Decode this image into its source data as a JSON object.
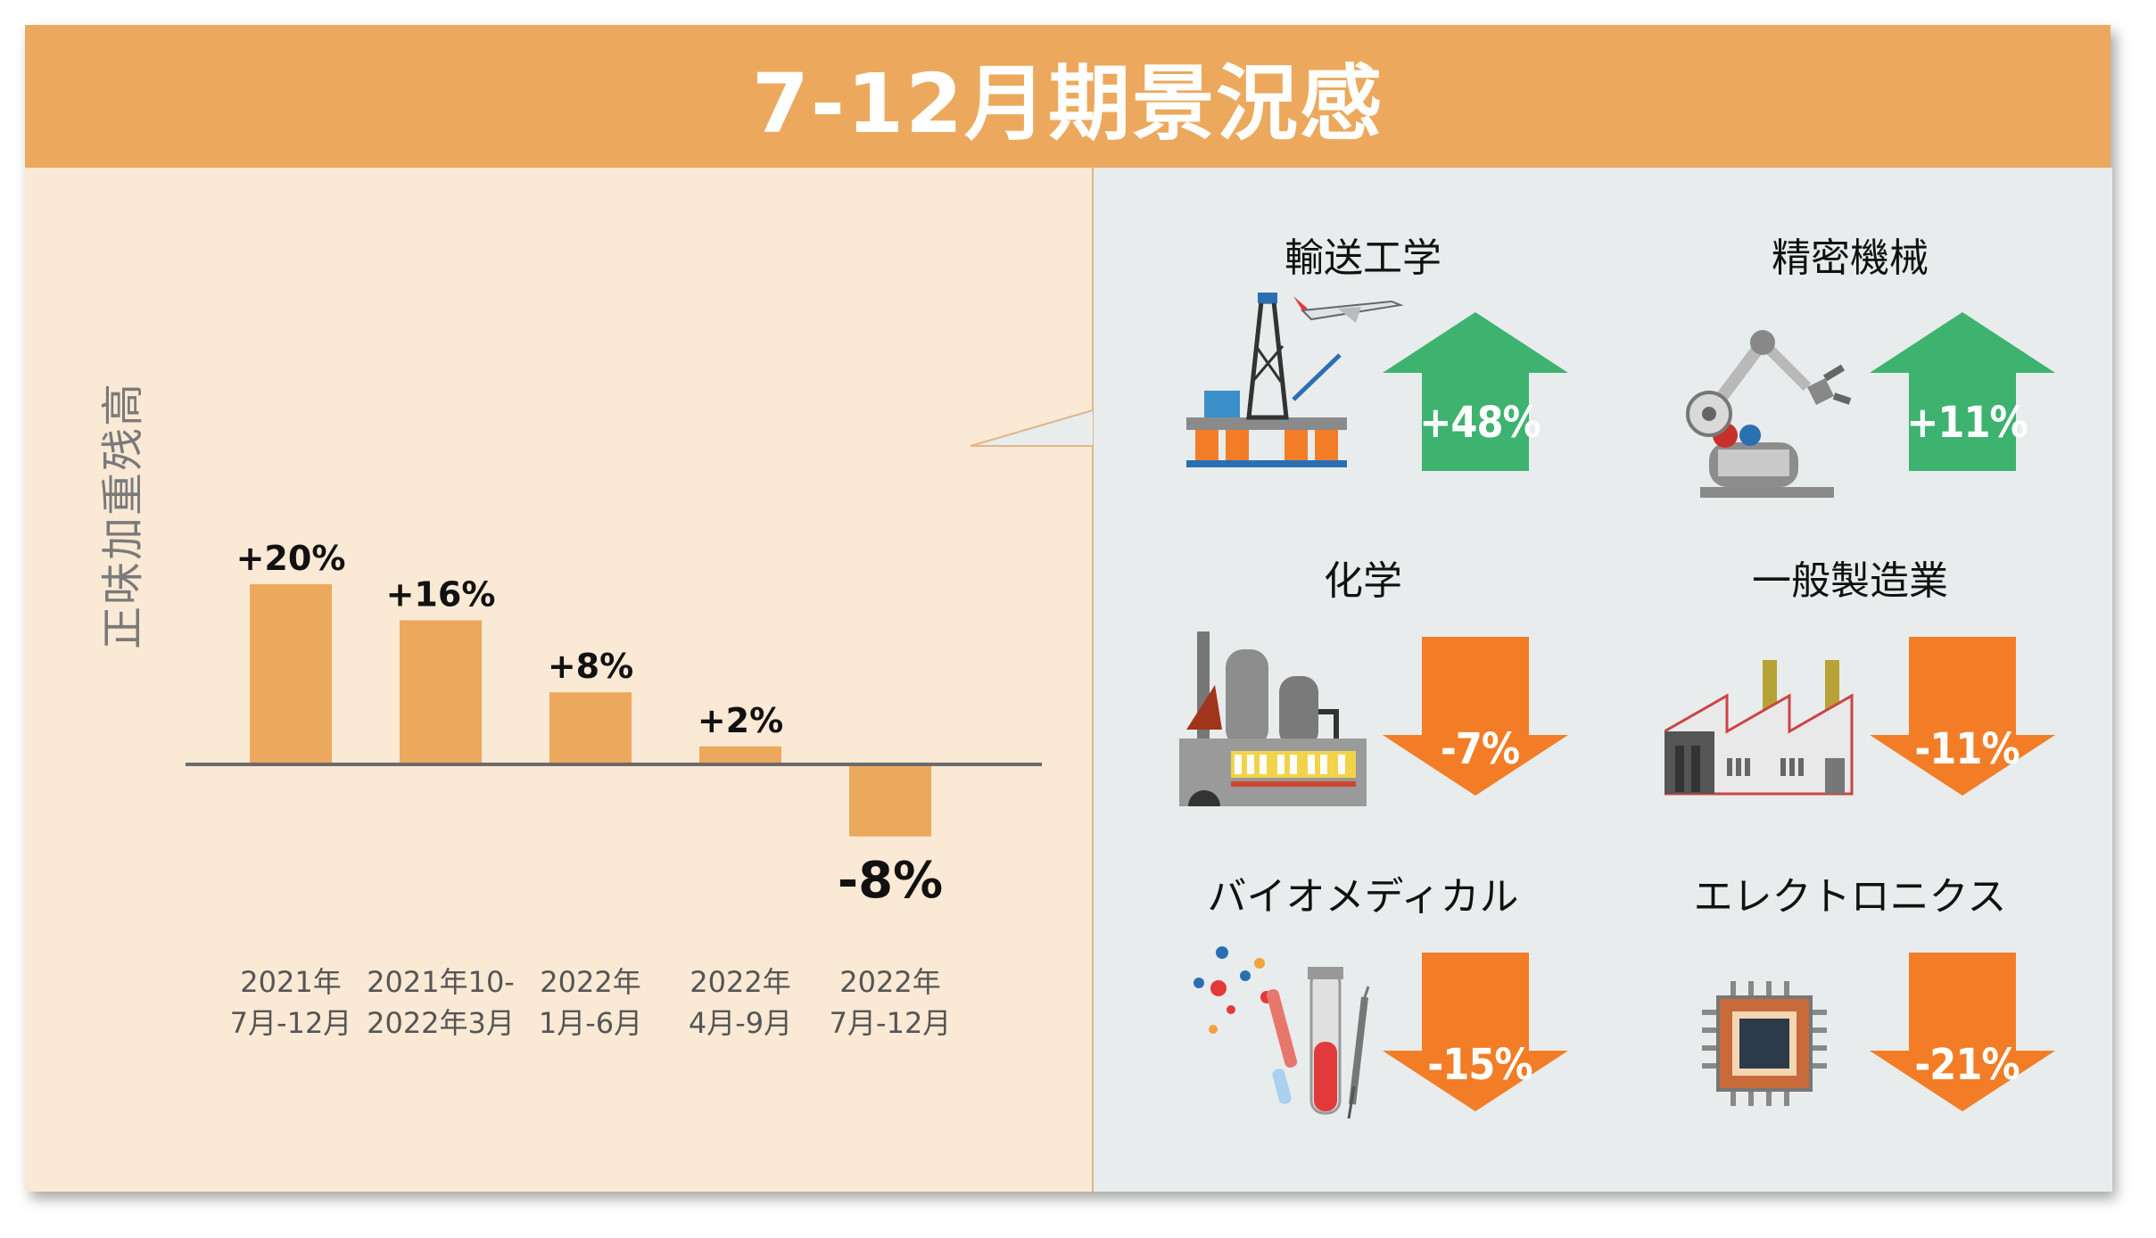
{
  "title": "7-12月期景況感",
  "chart_data": {
    "type": "bar",
    "ylabel": "正味加重残高",
    "categories": [
      {
        "line1": "2021年",
        "line2": "7月-12月"
      },
      {
        "line1": "2021年10-",
        "line2": "2022年3月"
      },
      {
        "line1": "2022年",
        "line2": "1月-6月"
      },
      {
        "line1": "2022年",
        "line2": "4月-9月"
      },
      {
        "line1": "2022年",
        "line2": "7月-12月"
      }
    ],
    "values": [
      20,
      16,
      8,
      2,
      -8
    ],
    "value_labels": [
      "+20%",
      "+16%",
      "+8%",
      "+2%",
      "-8%"
    ],
    "ylim": [
      -10,
      25
    ],
    "bar_color": "#eca95d"
  },
  "sectors": [
    {
      "name": "輸送工学",
      "change": "+48%",
      "direction": "up",
      "icon": "oil-rig-airplane-icon"
    },
    {
      "name": "精密機械",
      "change": "+11%",
      "direction": "up",
      "icon": "robot-arm-icon"
    },
    {
      "name": "化学",
      "change": "-7%",
      "direction": "down",
      "icon": "chemical-plant-icon"
    },
    {
      "name": "一般製造業",
      "change": "-11%",
      "direction": "down",
      "icon": "factory-icon"
    },
    {
      "name": "バイオメディカル",
      "change": "-15%",
      "direction": "down",
      "icon": "test-tube-syringe-icon"
    },
    {
      "name": "エレクトロニクス",
      "change": "-21%",
      "direction": "down",
      "icon": "microchip-icon"
    }
  ],
  "colors": {
    "header": "#eca95d",
    "up_arrow": "#3eb26f",
    "down_arrow": "#f27d26"
  }
}
